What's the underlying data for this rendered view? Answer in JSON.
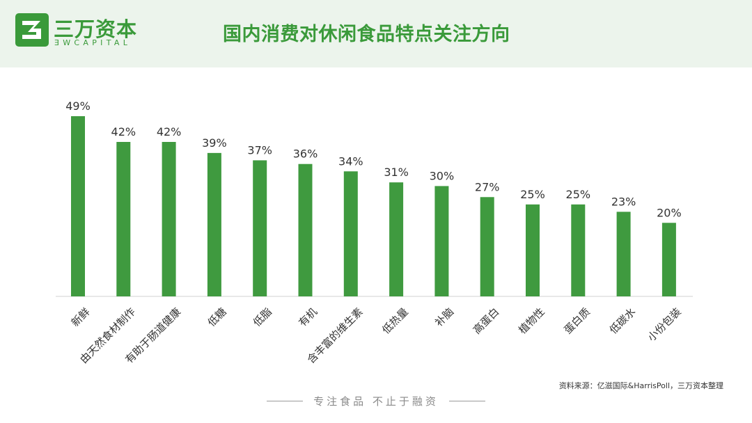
{
  "brand": {
    "name": "三万资本",
    "sub": "ƎWCAPITAL",
    "color": "#3a9a3a"
  },
  "title": "国内消费对休闲食品特点关注方向",
  "source": "资料来源：亿滋国际&HarrisPoll，三万资本整理",
  "slogan": "专注食品 不止于融资",
  "chart_data": {
    "type": "bar",
    "categories": [
      "新鲜",
      "由天然食材制作",
      "有助于肠道健康",
      "低糖",
      "低脂",
      "有机",
      "含丰富的维生素",
      "低热量",
      "补脑",
      "高蛋白",
      "植物性",
      "蛋白质",
      "低碳水",
      "小份包装"
    ],
    "values": [
      49,
      42,
      42,
      39,
      37,
      36,
      34,
      31,
      30,
      27,
      25,
      25,
      23,
      20
    ],
    "value_labels": [
      "49%",
      "42%",
      "42%",
      "39%",
      "37%",
      "36%",
      "34%",
      "31%",
      "30%",
      "27%",
      "25%",
      "25%",
      "23%",
      "20%"
    ],
    "unit": "%",
    "ylim": [
      0,
      49
    ],
    "bar_color": "#3f9a3f",
    "grid": false,
    "legend": "none"
  }
}
